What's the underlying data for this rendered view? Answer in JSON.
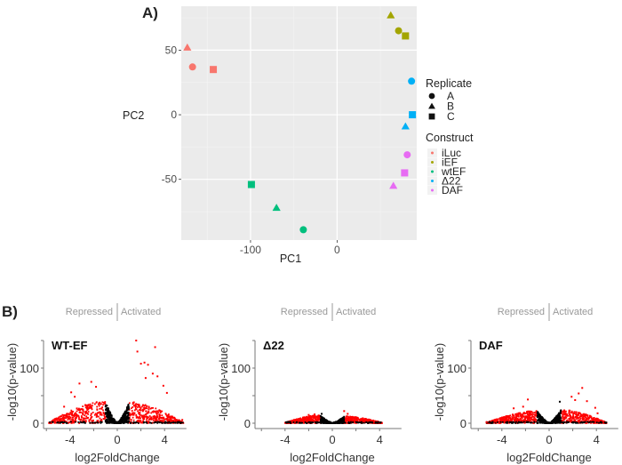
{
  "figure": {
    "panel_a_label": "A)",
    "panel_b_label": "B)"
  },
  "chart_data": [
    {
      "type": "scatter",
      "title": "",
      "xlabel": "PC1",
      "ylabel": "PC2",
      "xlim": [
        -180,
        92
      ],
      "ylim": [
        -97,
        84
      ],
      "x_ticks": [
        {
          "value": -100,
          "label": "-100"
        },
        {
          "value": 0,
          "label": "0"
        }
      ],
      "y_ticks": [
        {
          "value": 50,
          "label": "50"
        },
        {
          "value": 0,
          "label": "0"
        },
        {
          "value": -50,
          "label": "-50"
        }
      ],
      "x_minor_grid": [
        -150,
        -50,
        50
      ],
      "y_minor_grid": [
        75,
        25,
        -25,
        -75
      ],
      "grid": true,
      "background": "#ebebeb",
      "legend_placement": "right",
      "legends": {
        "shape": {
          "title": "Replicate",
          "items": [
            {
              "label": "A",
              "shape": "circle"
            },
            {
              "label": "B",
              "shape": "triangle"
            },
            {
              "label": "C",
              "shape": "square"
            }
          ]
        },
        "color": {
          "title": "Construct",
          "items": [
            {
              "label": "iLuc",
              "color": "#f8766d"
            },
            {
              "label": "iEF",
              "color": "#a3a500"
            },
            {
              "label": "wtEF",
              "color": "#00bf7d"
            },
            {
              "label": "Δ22",
              "color": "#00b0f6"
            },
            {
              "label": "DAF",
              "color": "#e76bf3"
            }
          ]
        }
      },
      "points": [
        {
          "construct": "iLuc",
          "replicate": "B",
          "x": -173,
          "y": 52
        },
        {
          "construct": "iLuc",
          "replicate": "A",
          "x": -167,
          "y": 37
        },
        {
          "construct": "iLuc",
          "replicate": "C",
          "x": -143,
          "y": 35
        },
        {
          "construct": "iEF",
          "replicate": "B",
          "x": 62,
          "y": 77
        },
        {
          "construct": "iEF",
          "replicate": "A",
          "x": 71,
          "y": 65
        },
        {
          "construct": "iEF",
          "replicate": "C",
          "x": 79,
          "y": 61
        },
        {
          "construct": "Δ22",
          "replicate": "A",
          "x": 86,
          "y": 26
        },
        {
          "construct": "Δ22",
          "replicate": "C",
          "x": 87,
          "y": 0
        },
        {
          "construct": "Δ22",
          "replicate": "B",
          "x": 79,
          "y": -9
        },
        {
          "construct": "DAF",
          "replicate": "A",
          "x": 81,
          "y": -31
        },
        {
          "construct": "DAF",
          "replicate": "C",
          "x": 78,
          "y": -45
        },
        {
          "construct": "DAF",
          "replicate": "B",
          "x": 65,
          "y": -55
        },
        {
          "construct": "wtEF",
          "replicate": "C",
          "x": -99,
          "y": -54
        },
        {
          "construct": "wtEF",
          "replicate": "B",
          "x": -70,
          "y": -72
        },
        {
          "construct": "wtEF",
          "replicate": "A",
          "x": -39,
          "y": -89
        }
      ]
    },
    {
      "type": "scatter",
      "subtype": "volcano",
      "name": "WT-EF",
      "xlabel": "log2FoldChange",
      "ylabel": "-log10(p-value)",
      "xlim": [
        -6,
        6
      ],
      "ylim": [
        0,
        150
      ],
      "x_ticks": [
        -4,
        0,
        4
      ],
      "y_ticks": [
        0,
        100
      ],
      "header_left": "Repressed",
      "header_right": "Activated",
      "significance_threshold_lfc": 1,
      "colors": {
        "significant": "#ff0000",
        "not_significant": "#000000"
      },
      "envelope": {
        "left_peak_y": 40,
        "right_peak_y": 38,
        "extent": [
          -5.8,
          5.6
        ]
      },
      "outliers": [
        {
          "x": 1.6,
          "y": 150
        },
        {
          "x": 3.2,
          "y": 138
        },
        {
          "x": 1.7,
          "y": 130
        },
        {
          "x": 2.3,
          "y": 110
        },
        {
          "x": 2.6,
          "y": 106
        },
        {
          "x": 2.0,
          "y": 108
        },
        {
          "x": 3.0,
          "y": 90
        },
        {
          "x": 3.4,
          "y": 85
        },
        {
          "x": 3.9,
          "y": 68
        },
        {
          "x": 2.4,
          "y": 82
        },
        {
          "x": 4.2,
          "y": 55
        },
        {
          "x": -3.2,
          "y": 72
        },
        {
          "x": -2.2,
          "y": 75
        },
        {
          "x": -1.8,
          "y": 66
        },
        {
          "x": -3.9,
          "y": 56
        },
        {
          "x": -4.5,
          "y": 30
        },
        {
          "x": -3.6,
          "y": 48
        },
        {
          "x": 5.5,
          "y": 6
        }
      ]
    },
    {
      "type": "scatter",
      "subtype": "volcano",
      "name": "Δ22",
      "xlabel": "log2FoldChange",
      "ylabel": "-log10(p-value)",
      "xlim": [
        -6,
        6
      ],
      "ylim": [
        0,
        150
      ],
      "x_ticks": [
        -4,
        0,
        4
      ],
      "y_ticks": [
        0,
        100
      ],
      "header_left": "Repressed",
      "header_right": "Activated",
      "significance_threshold_lfc": 1,
      "colors": {
        "significant": "#ff0000",
        "not_significant": "#000000"
      },
      "envelope": {
        "left_peak_y": 14,
        "right_peak_y": 12,
        "extent": [
          -4,
          4.2
        ]
      },
      "outliers": [
        {
          "x": 1.0,
          "y": 22
        },
        {
          "x": -0.9,
          "y": 17
        },
        {
          "x": -2.0,
          "y": 15
        },
        {
          "x": -1.5,
          "y": 16
        },
        {
          "x": 1.3,
          "y": 17
        },
        {
          "x": 2.8,
          "y": 8
        }
      ]
    },
    {
      "type": "scatter",
      "subtype": "volcano",
      "name": "DAF",
      "xlabel": "log2FoldChange",
      "ylabel": "-log10(p-value)",
      "xlim": [
        -6,
        6
      ],
      "ylim": [
        0,
        150
      ],
      "x_ticks": [
        -4,
        0,
        4
      ],
      "y_ticks": [
        0,
        100
      ],
      "header_left": "Repressed",
      "header_right": "Activated",
      "significance_threshold_lfc": 1,
      "colors": {
        "significant": "#ff0000",
        "not_significant": "#000000"
      },
      "envelope": {
        "left_peak_y": 22,
        "right_peak_y": 24,
        "extent": [
          -5.3,
          4.9
        ]
      },
      "outliers": [
        {
          "x": 2.8,
          "y": 64
        },
        {
          "x": 2.5,
          "y": 54
        },
        {
          "x": 1.9,
          "y": 48
        },
        {
          "x": -1.8,
          "y": 43
        },
        {
          "x": 3.2,
          "y": 40
        },
        {
          "x": 2.2,
          "y": 42
        },
        {
          "x": 0.9,
          "y": 39
        },
        {
          "x": -2.2,
          "y": 30
        },
        {
          "x": -3.0,
          "y": 27
        },
        {
          "x": 3.9,
          "y": 28
        },
        {
          "x": 4.1,
          "y": 18
        },
        {
          "x": -5.3,
          "y": 2
        },
        {
          "x": -4.5,
          "y": 3
        }
      ]
    }
  ]
}
